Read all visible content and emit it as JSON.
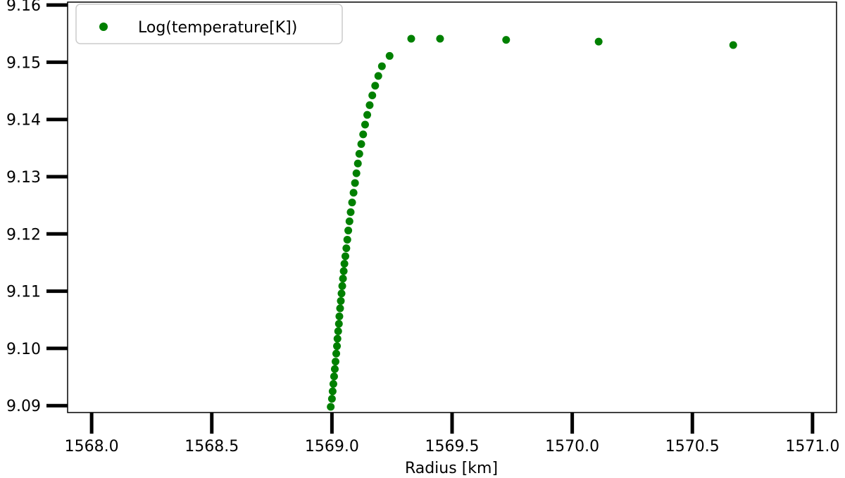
{
  "chart_data": {
    "type": "scatter",
    "title": "",
    "xlabel": "Radius [km]",
    "ylabel": "",
    "xlim": [
      1567.9,
      1571.1
    ],
    "ylim": [
      9.0888,
      9.1605
    ],
    "xticks": [
      1568.0,
      1568.5,
      1569.0,
      1569.5,
      1570.0,
      1570.5,
      1571.0
    ],
    "xtick_labels": [
      "1568.0",
      "1568.5",
      "1569.0",
      "1569.5",
      "1570.0",
      "1570.5",
      "1571.0"
    ],
    "yticks": [
      9.09,
      9.1,
      9.11,
      9.12,
      9.13,
      9.14,
      9.15,
      9.16
    ],
    "ytick_labels": [
      "9.09",
      "9.10",
      "9.11",
      "9.12",
      "9.13",
      "9.14",
      "9.15",
      "9.16"
    ],
    "grid": false,
    "legend_position": "top-left",
    "series": [
      {
        "name": "Log(temperature[K])",
        "color": "#008000",
        "marker": "circle",
        "points": [
          [
            1568.995,
            9.0898
          ],
          [
            1569.0,
            9.0912
          ],
          [
            1569.003,
            9.0925
          ],
          [
            1569.006,
            9.0938
          ],
          [
            1569.009,
            9.0951
          ],
          [
            1569.012,
            9.0964
          ],
          [
            1569.015,
            9.0977
          ],
          [
            1569.018,
            9.0991
          ],
          [
            1569.021,
            9.1004
          ],
          [
            1569.023,
            9.1017
          ],
          [
            1569.026,
            9.103
          ],
          [
            1569.029,
            9.1043
          ],
          [
            1569.031,
            9.1056
          ],
          [
            1569.034,
            9.107
          ],
          [
            1569.037,
            9.1083
          ],
          [
            1569.04,
            9.1096
          ],
          [
            1569.043,
            9.1109
          ],
          [
            1569.046,
            9.1122
          ],
          [
            1569.049,
            9.1135
          ],
          [
            1569.052,
            9.1148
          ],
          [
            1569.056,
            9.1161
          ],
          [
            1569.06,
            9.1175
          ],
          [
            1569.064,
            9.119
          ],
          [
            1569.068,
            9.1206
          ],
          [
            1569.073,
            9.1222
          ],
          [
            1569.078,
            9.1238
          ],
          [
            1569.084,
            9.1255
          ],
          [
            1569.09,
            9.1272
          ],
          [
            1569.096,
            9.1289
          ],
          [
            1569.102,
            9.1306
          ],
          [
            1569.108,
            9.1323
          ],
          [
            1569.114,
            9.134
          ],
          [
            1569.122,
            9.1357
          ],
          [
            1569.13,
            9.1374
          ],
          [
            1569.138,
            9.1391
          ],
          [
            1569.147,
            9.1408
          ],
          [
            1569.157,
            9.1425
          ],
          [
            1569.168,
            9.1442
          ],
          [
            1569.18,
            9.1459
          ],
          [
            1569.193,
            9.1476
          ],
          [
            1569.208,
            9.1493
          ],
          [
            1569.24,
            9.1511
          ],
          [
            1569.33,
            9.1541
          ],
          [
            1569.45,
            9.1541
          ],
          [
            1569.725,
            9.1539
          ],
          [
            1570.11,
            9.1536
          ],
          [
            1570.67,
            9.153
          ]
        ]
      }
    ]
  }
}
